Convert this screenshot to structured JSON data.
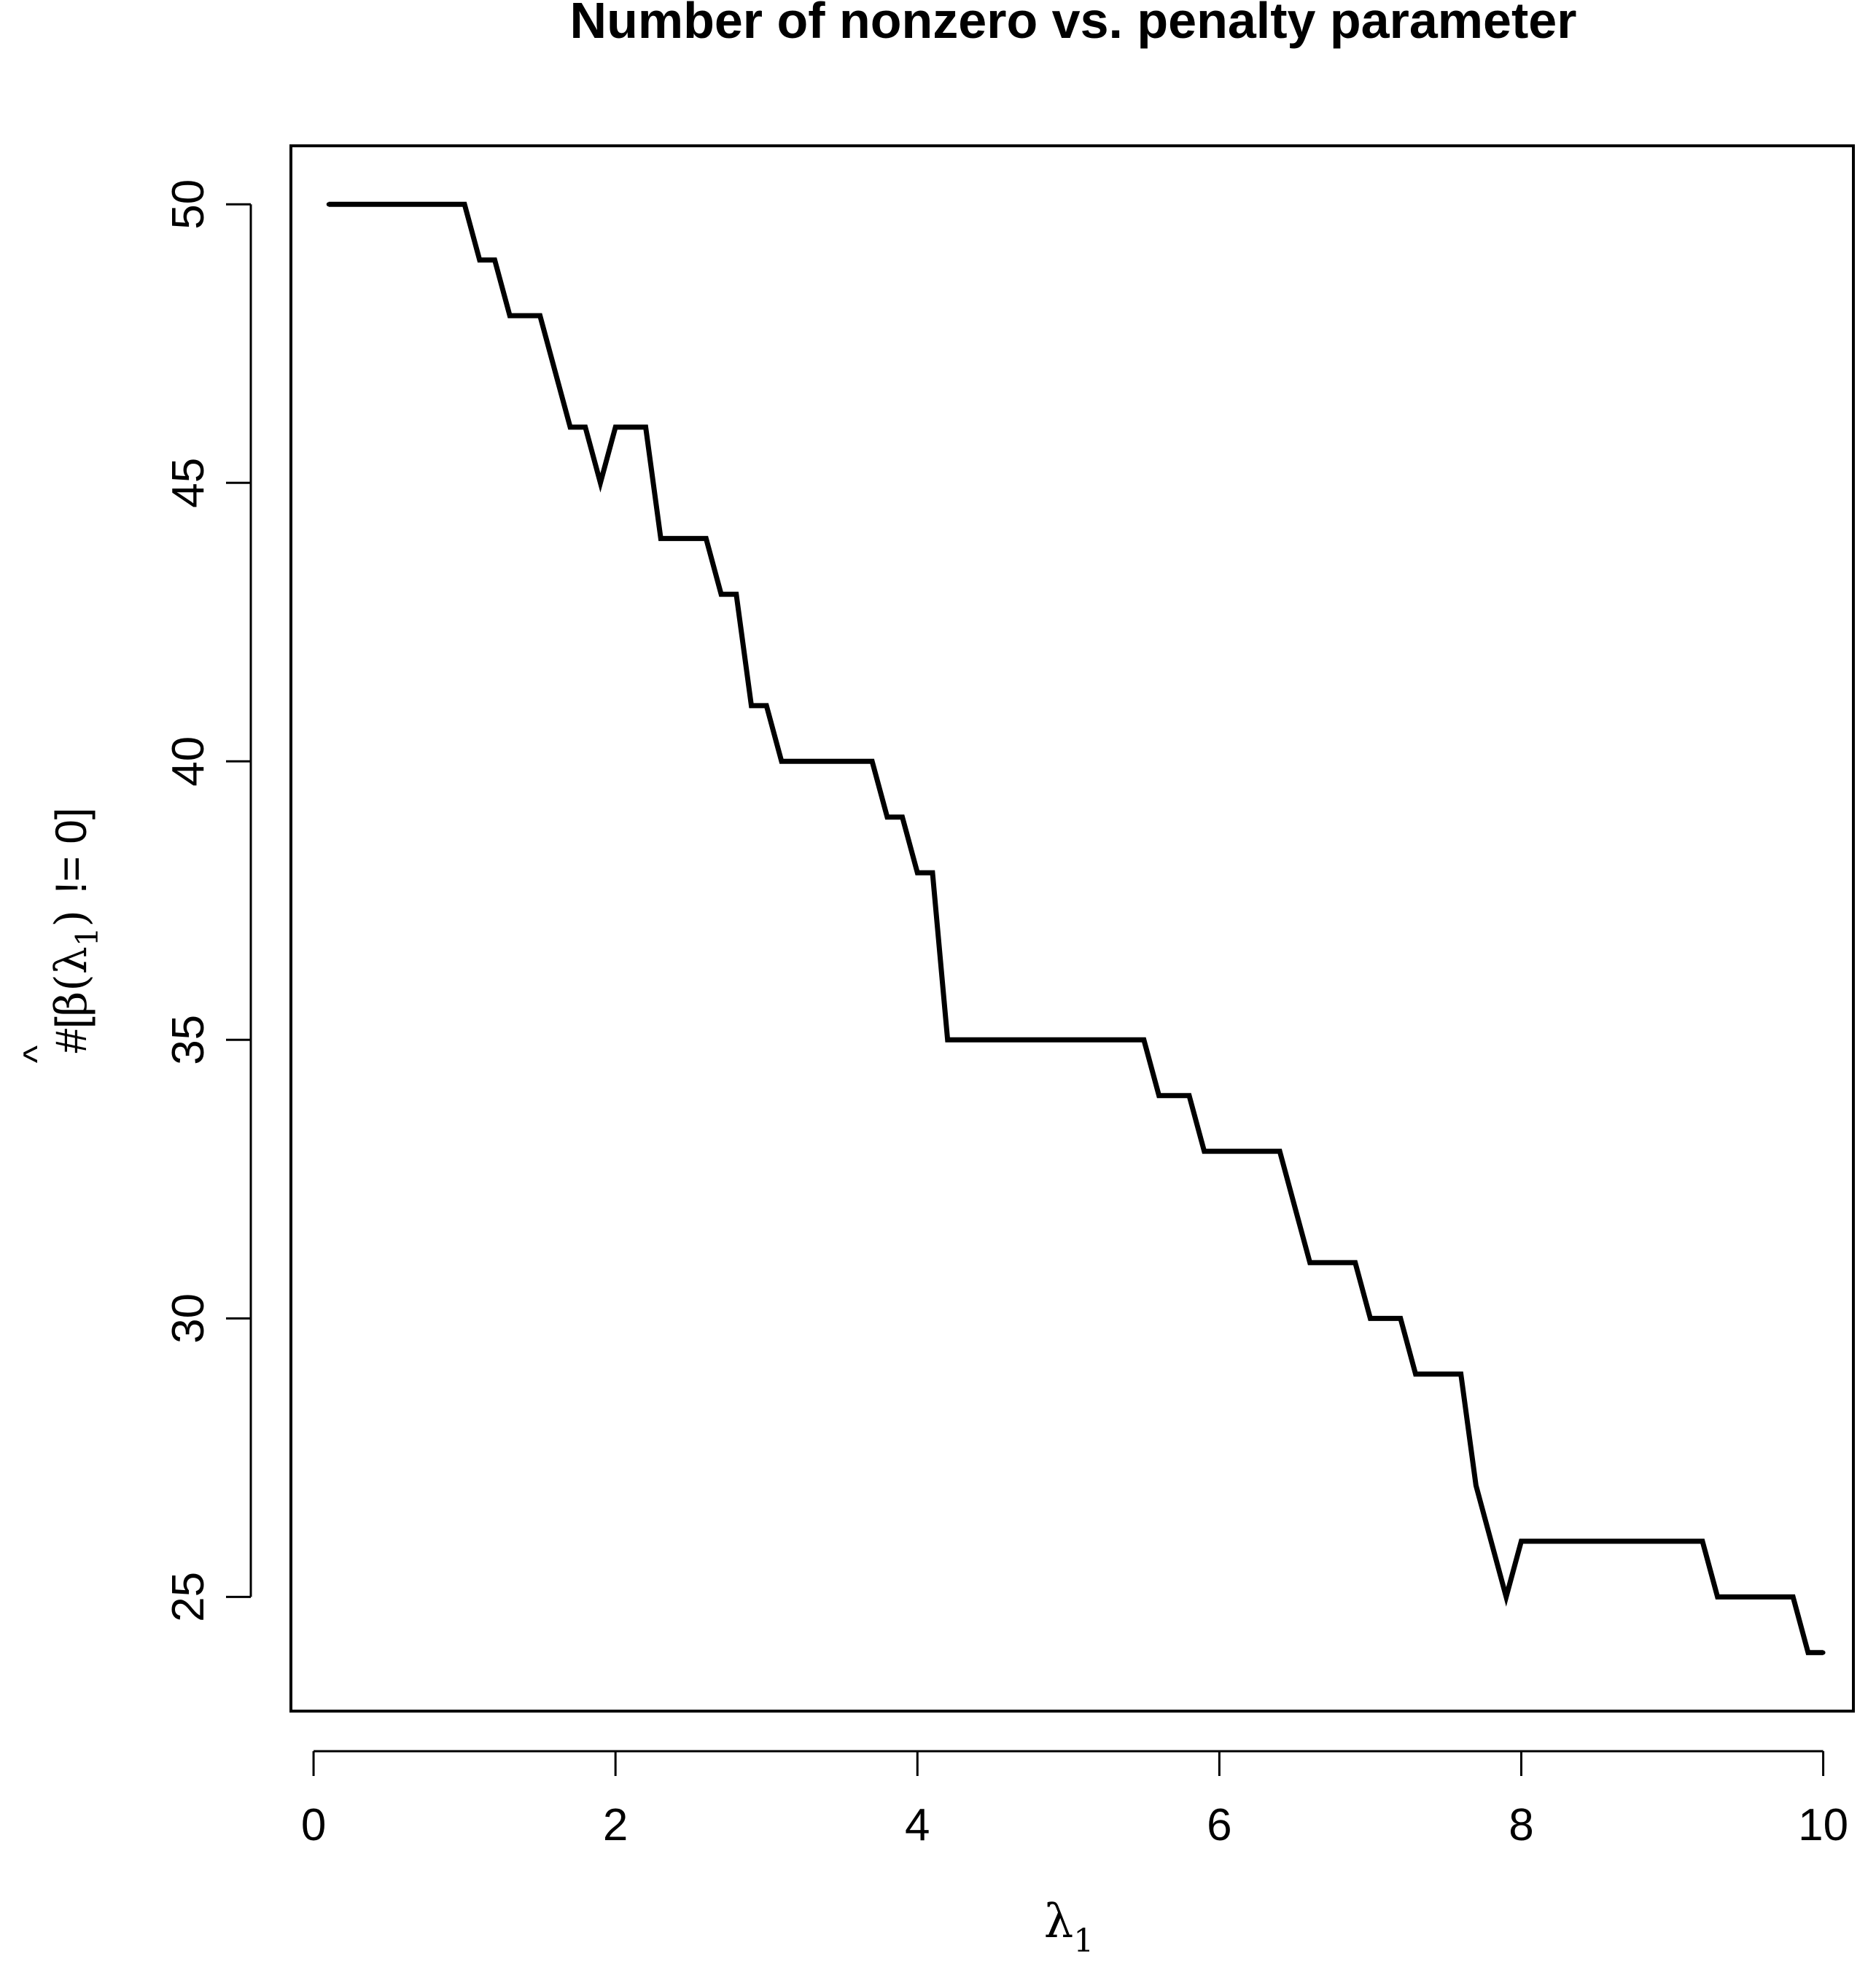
{
  "chart_data": {
    "type": "line",
    "title": "Number of nonzero vs. penalty parameter",
    "xlabel": {
      "main": "λ",
      "subscript": "1"
    },
    "ylabel": {
      "prefix": "#[",
      "hat": "^",
      "beta": "β",
      "open": "(λ",
      "subscript": "1",
      "close": ")",
      "suffix": "!= 0]"
    },
    "xlim": [
      -0.15,
      10.2
    ],
    "ylim": [
      22.95,
      51.05
    ],
    "xticks": [
      0,
      2,
      4,
      6,
      8,
      10
    ],
    "yticks": [
      25,
      30,
      35,
      40,
      45,
      50
    ],
    "grid": false,
    "legend": "none",
    "line_color": "#000000",
    "series": [
      {
        "x": [
          0.1,
          0.2,
          0.3,
          0.4,
          0.5,
          0.6,
          0.7,
          0.8,
          0.9,
          1.0,
          1.1,
          1.2,
          1.3,
          1.4,
          1.5,
          1.6,
          1.7,
          1.8,
          1.9,
          2.0,
          2.1,
          2.2,
          2.3,
          2.4,
          2.5,
          2.6,
          2.7,
          2.8,
          2.9,
          3.0,
          3.1,
          3.2,
          3.3,
          3.4,
          3.5,
          3.6,
          3.7,
          3.8,
          3.9,
          4.0,
          4.1,
          4.2,
          4.3,
          4.4,
          4.5,
          4.6,
          4.7,
          4.8,
          4.9,
          5.0,
          5.1,
          5.2,
          5.3,
          5.4,
          5.5,
          5.6,
          5.7,
          5.8,
          5.9,
          6.0,
          6.1,
          6.2,
          6.3,
          6.4,
          6.5,
          6.6,
          6.7,
          6.8,
          6.9,
          7.0,
          7.1,
          7.2,
          7.3,
          7.4,
          7.5,
          7.6,
          7.7,
          7.8,
          7.9,
          8.0,
          8.1,
          8.2,
          8.3,
          8.4,
          8.5,
          8.6,
          8.7,
          8.8,
          8.9,
          9.0,
          9.1,
          9.2,
          9.3,
          9.4,
          9.5,
          9.6,
          9.7,
          9.8,
          9.9,
          10.0
        ],
        "y": [
          50,
          50,
          50,
          50,
          50,
          50,
          50,
          50,
          50,
          50,
          49,
          49,
          48,
          48,
          48,
          47,
          46,
          46,
          45,
          46,
          46,
          46,
          44,
          44,
          44,
          44,
          43,
          43,
          41,
          41,
          40,
          40,
          40,
          40,
          40,
          40,
          40,
          39,
          39,
          38,
          38,
          35,
          35,
          35,
          35,
          35,
          35,
          35,
          35,
          35,
          35,
          35,
          35,
          35,
          35,
          34,
          34,
          34,
          33,
          33,
          33,
          33,
          33,
          33,
          32,
          31,
          31,
          31,
          31,
          30,
          30,
          30,
          29,
          29,
          29,
          29,
          27,
          26,
          25,
          26,
          26,
          26,
          26,
          26,
          26,
          26,
          26,
          26,
          26,
          26,
          26,
          26,
          25,
          25,
          25,
          25,
          25,
          25,
          24,
          24
        ]
      }
    ]
  }
}
